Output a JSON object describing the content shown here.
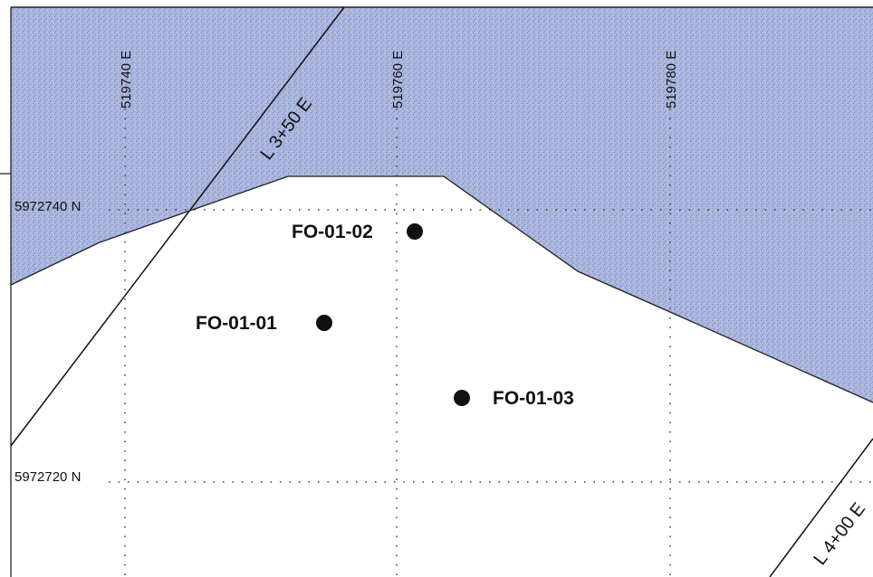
{
  "colors": {
    "water_fill": "#aab6dc",
    "water_speckle": "#6f80c0",
    "grid_line": "#333333",
    "line_color": "#111111",
    "marker": "#111111"
  },
  "grid": {
    "eastings": [
      "519740 E",
      "519760 E",
      "519780 E"
    ],
    "northings": [
      "5972740 N",
      "5972720 N"
    ]
  },
  "survey_lines": [
    "L 3+50 E",
    "L 4+00 E"
  ],
  "drill_holes": [
    {
      "id": "FO-01-01"
    },
    {
      "id": "FO-01-02"
    },
    {
      "id": "FO-01-03"
    }
  ]
}
